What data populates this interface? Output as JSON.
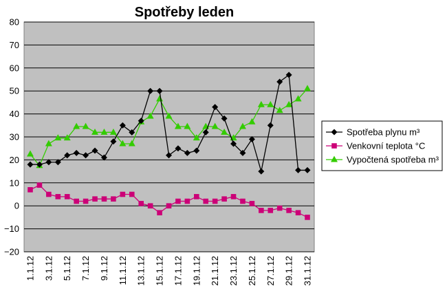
{
  "chart_data": {
    "type": "line",
    "title": "Spotřeby leden",
    "xlabel": "",
    "ylabel": "",
    "ylim": [
      -20,
      80
    ],
    "yticks": [
      "80",
      "70",
      "60",
      "50",
      "40",
      "30",
      "20",
      "10",
      "0",
      "−10",
      "−20"
    ],
    "ytick_values": [
      80,
      70,
      60,
      50,
      40,
      30,
      20,
      10,
      0,
      -10,
      -20
    ],
    "x_tick_labels": [
      "1.1.12",
      "3.1.12",
      "5.1.12",
      "7.1.12",
      "9.1.12",
      "11.1.12",
      "13.1.12",
      "15.1.12",
      "17.1.12",
      "19.1.12",
      "21.1.12",
      "23.1.12",
      "25.1.12",
      "27.1.12",
      "29.1.12",
      "31.1.12"
    ],
    "grid": "horizontal",
    "legend_position": "right",
    "background": "#c0c0c0",
    "series": [
      {
        "name": "Spotřeba plynu m³",
        "color": "#000000",
        "marker": "diamond",
        "values": [
          18,
          18,
          19,
          19,
          22,
          23,
          22,
          24,
          21,
          28,
          35,
          32,
          37,
          50,
          50,
          22,
          25,
          23,
          24,
          32,
          43,
          38,
          27,
          23,
          29,
          15,
          35,
          54,
          57,
          15.5,
          15.5
        ]
      },
      {
        "name": "Venkovní teplota °C",
        "color": "#cc0077",
        "marker": "square",
        "values": [
          7,
          9,
          5,
          4,
          4,
          2,
          2,
          3,
          3,
          3,
          5,
          5,
          1,
          0,
          -3,
          0,
          2,
          2,
          4,
          2,
          2,
          3,
          4,
          2,
          1,
          -2,
          -2,
          -1,
          -2,
          -3,
          -5
        ]
      },
      {
        "name": "Vypočtená spotřeba m³",
        "color": "#33cc00",
        "marker": "triangle",
        "values": [
          22.5,
          17.5,
          27,
          29.5,
          29.5,
          34.5,
          34.5,
          32,
          32,
          32,
          27,
          27,
          36.5,
          39,
          46.5,
          39,
          34.5,
          34.5,
          29.5,
          34.5,
          34.5,
          32,
          29.5,
          34.5,
          36.5,
          44,
          44,
          41.5,
          44,
          46.5,
          51
        ]
      }
    ]
  }
}
